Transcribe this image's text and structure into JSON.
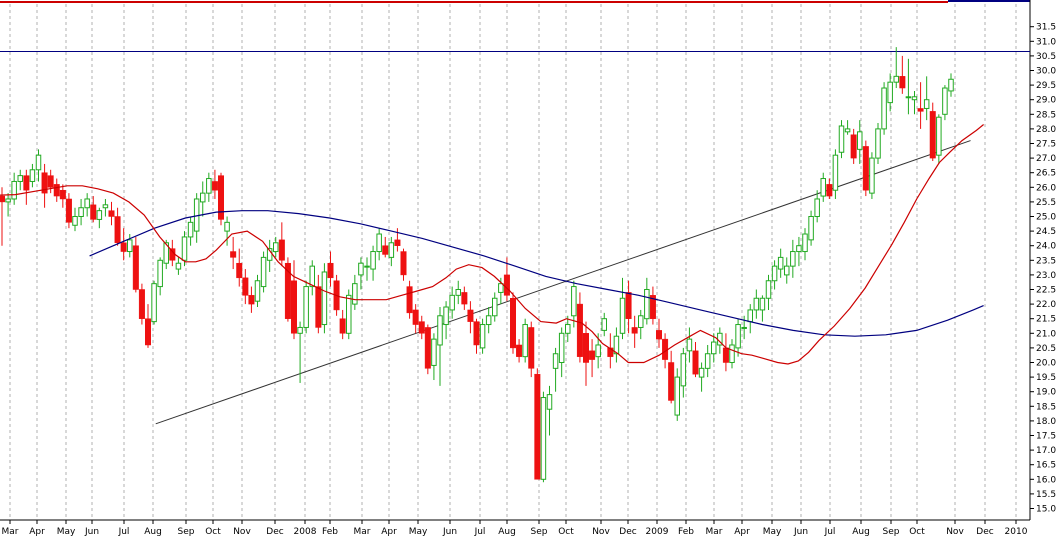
{
  "chart_data": {
    "type": "candlestick",
    "title": "",
    "xlabel": "",
    "ylabel": "",
    "ylim": [
      14.5,
      32.0
    ],
    "y_ticks": [
      15.0,
      15.5,
      16.0,
      16.5,
      17.0,
      17.5,
      18.0,
      18.5,
      19.0,
      19.5,
      20.0,
      20.5,
      21.0,
      21.5,
      22.0,
      22.5,
      23.0,
      23.5,
      24.0,
      24.5,
      25.0,
      25.5,
      26.0,
      26.5,
      27.0,
      27.5,
      28.0,
      28.5,
      29.0,
      29.5,
      30.0,
      30.5,
      31.0,
      31.5
    ],
    "y_tick_labels": [
      "15.0",
      "15.5",
      "16.0",
      "16.5",
      "17.0",
      "17.5",
      "18.0",
      "18.5",
      "19.0",
      "19.5",
      "20.0",
      "20.5",
      "21.0",
      "21.5",
      "22.0",
      "22.5",
      "23.0",
      "23.5",
      "24.0",
      "24.5",
      "25.0",
      "25.5",
      "26.0",
      "26.5",
      "27.0",
      "27.5",
      "28.0",
      "28.5",
      "29.0",
      "29.5",
      "30.0",
      "30.5",
      "31.0",
      "31.5"
    ],
    "x_labels": [
      "Mar",
      "Apr",
      "May",
      "Jun",
      "Jul",
      "Aug",
      "Sep",
      "Oct",
      "Nov",
      "Dec",
      "2008",
      "Feb",
      "Mar",
      "Apr",
      "May",
      "Jun",
      "Jul",
      "Aug",
      "Sep",
      "Oct",
      "Nov",
      "Dec",
      "2009",
      "Feb",
      "Mar",
      "Apr",
      "May",
      "Jun",
      "Jul",
      "Aug",
      "Sep",
      "Oct",
      "Nov",
      "Dec",
      "2010"
    ],
    "grid": "vertical dotted",
    "colors": {
      "up": "#22aa22",
      "down": "#ee1111",
      "ma_short": "#cc0000",
      "ma_long": "#000080",
      "resistance": "#000080",
      "trendline": "#333333",
      "top_border": "#cc0000"
    },
    "resistance_level": 30.65,
    "trendline": {
      "from": [
        0.1512,
        17.9
      ],
      "to": [
        0.9423,
        27.6
      ]
    },
    "candles": [
      [
        25.7,
        26.0,
        24.0,
        25.5
      ],
      [
        25.5,
        25.8,
        25.0,
        25.6
      ],
      [
        25.6,
        26.5,
        25.4,
        26.2
      ],
      [
        26.2,
        26.6,
        25.9,
        26.4
      ],
      [
        26.4,
        26.6,
        25.4,
        25.9
      ],
      [
        26.2,
        26.8,
        26.0,
        26.6
      ],
      [
        26.6,
        27.3,
        26.2,
        27.1
      ],
      [
        26.5,
        26.8,
        25.3,
        25.8
      ],
      [
        26.4,
        26.6,
        25.8,
        26.0
      ],
      [
        26.1,
        26.3,
        25.5,
        25.7
      ],
      [
        25.9,
        26.1,
        25.3,
        25.6
      ],
      [
        25.6,
        25.8,
        24.6,
        24.8
      ],
      [
        24.7,
        25.3,
        24.5,
        25.0
      ],
      [
        25.0,
        25.6,
        24.7,
        25.3
      ],
      [
        25.3,
        25.8,
        25.0,
        25.6
      ],
      [
        25.4,
        25.7,
        24.8,
        24.9
      ],
      [
        24.9,
        25.3,
        24.6,
        25.2
      ],
      [
        25.3,
        25.6,
        25.0,
        25.4
      ],
      [
        25.2,
        25.5,
        24.7,
        25.0
      ],
      [
        25.0,
        25.3,
        24.0,
        24.1
      ],
      [
        24.1,
        24.6,
        23.5,
        23.8
      ],
      [
        23.8,
        24.4,
        23.6,
        24.2
      ],
      [
        24.0,
        24.3,
        22.4,
        22.5
      ],
      [
        22.5,
        22.7,
        21.3,
        21.5
      ],
      [
        21.5,
        22.0,
        20.5,
        20.6
      ],
      [
        21.4,
        22.8,
        21.3,
        22.7
      ],
      [
        22.6,
        23.6,
        22.3,
        23.5
      ],
      [
        23.4,
        24.2,
        23.2,
        24.1
      ],
      [
        23.9,
        24.2,
        23.3,
        23.5
      ],
      [
        23.2,
        23.6,
        23.0,
        23.4
      ],
      [
        23.5,
        24.5,
        23.3,
        24.3
      ],
      [
        24.3,
        25.0,
        24.0,
        24.8
      ],
      [
        24.5,
        25.8,
        24.1,
        25.6
      ],
      [
        25.5,
        26.2,
        25.0,
        25.8
      ],
      [
        25.8,
        26.5,
        25.5,
        26.3
      ],
      [
        26.2,
        26.6,
        25.6,
        25.9
      ],
      [
        26.4,
        26.5,
        24.7,
        24.9
      ],
      [
        24.5,
        25.0,
        24.0,
        24.8
      ],
      [
        23.8,
        24.3,
        23.2,
        23.6
      ],
      [
        23.4,
        23.9,
        22.6,
        22.9
      ],
      [
        22.9,
        23.2,
        22.0,
        22.3
      ],
      [
        22.3,
        22.6,
        21.7,
        22.0
      ],
      [
        22.1,
        23.0,
        21.9,
        22.8
      ],
      [
        22.6,
        23.8,
        22.4,
        23.6
      ],
      [
        23.5,
        24.2,
        23.1,
        23.9
      ],
      [
        23.8,
        24.3,
        23.6,
        24.1
      ],
      [
        24.2,
        24.8,
        23.3,
        23.5
      ],
      [
        23.4,
        23.6,
        21.4,
        21.5
      ],
      [
        22.8,
        23.5,
        20.8,
        21.0
      ],
      [
        21.0,
        21.4,
        19.3,
        21.2
      ],
      [
        21.2,
        22.8,
        21.0,
        22.6
      ],
      [
        22.6,
        23.5,
        22.3,
        23.3
      ],
      [
        22.6,
        23.0,
        21.0,
        21.2
      ],
      [
        21.3,
        23.4,
        21.0,
        23.1
      ],
      [
        23.4,
        23.8,
        22.6,
        22.9
      ],
      [
        22.8,
        23.0,
        21.6,
        21.8
      ],
      [
        21.5,
        21.8,
        20.8,
        21.0
      ],
      [
        21.0,
        22.5,
        20.8,
        22.3
      ],
      [
        22.0,
        23.0,
        21.8,
        22.7
      ],
      [
        23.0,
        23.6,
        22.5,
        23.4
      ],
      [
        23.3,
        23.6,
        22.8,
        23.3
      ],
      [
        23.2,
        24.0,
        22.8,
        23.8
      ],
      [
        23.8,
        24.6,
        23.5,
        24.4
      ],
      [
        24.0,
        24.3,
        23.6,
        23.7
      ],
      [
        23.6,
        24.3,
        23.3,
        24.1
      ],
      [
        24.2,
        24.6,
        23.8,
        24.0
      ],
      [
        23.8,
        23.9,
        22.8,
        23.0
      ],
      [
        22.6,
        22.8,
        21.5,
        21.7
      ],
      [
        21.8,
        22.0,
        21.0,
        21.3
      ],
      [
        21.4,
        21.6,
        20.8,
        21.0
      ],
      [
        21.2,
        21.3,
        19.6,
        19.8
      ],
      [
        19.9,
        21.0,
        19.4,
        20.8
      ],
      [
        20.6,
        21.9,
        19.2,
        21.6
      ],
      [
        21.3,
        22.1,
        20.8,
        21.9
      ],
      [
        21.8,
        22.6,
        21.5,
        22.3
      ],
      [
        22.3,
        22.8,
        22.0,
        22.5
      ],
      [
        22.4,
        22.6,
        21.8,
        22.0
      ],
      [
        21.8,
        22.1,
        21.0,
        21.4
      ],
      [
        21.4,
        21.5,
        20.3,
        20.6
      ],
      [
        20.5,
        21.5,
        20.3,
        21.3
      ],
      [
        21.3,
        21.9,
        21.0,
        21.6
      ],
      [
        21.6,
        22.4,
        21.4,
        22.2
      ],
      [
        22.4,
        22.9,
        22.0,
        22.7
      ],
      [
        23.0,
        23.6,
        22.1,
        22.3
      ],
      [
        22.2,
        22.4,
        20.3,
        20.5
      ],
      [
        20.6,
        20.8,
        20.0,
        20.2
      ],
      [
        20.2,
        21.5,
        20.0,
        21.3
      ],
      [
        21.2,
        21.4,
        19.5,
        19.8
      ],
      [
        19.6,
        19.8,
        16.0,
        16.0
      ],
      [
        16.0,
        19.0,
        15.9,
        18.8
      ],
      [
        18.4,
        19.2,
        17.5,
        18.9
      ],
      [
        19.8,
        20.5,
        19.0,
        20.3
      ],
      [
        20.0,
        21.2,
        19.5,
        21.0
      ],
      [
        21.0,
        21.6,
        20.7,
        21.3
      ],
      [
        21.6,
        22.8,
        21.2,
        22.6
      ],
      [
        22.0,
        22.4,
        20.0,
        20.2
      ],
      [
        21.0,
        21.4,
        19.2,
        20.0
      ],
      [
        20.4,
        20.8,
        19.5,
        20.1
      ],
      [
        20.2,
        21.0,
        19.8,
        20.6
      ],
      [
        21.1,
        21.7,
        20.9,
        21.5
      ],
      [
        20.5,
        21.0,
        19.8,
        20.2
      ],
      [
        20.3,
        21.2,
        20.0,
        20.9
      ],
      [
        21.0,
        22.9,
        20.8,
        22.2
      ],
      [
        22.4,
        22.8,
        21.0,
        21.5
      ],
      [
        21.2,
        21.6,
        20.5,
        21.0
      ],
      [
        21.2,
        21.8,
        20.8,
        21.6
      ],
      [
        21.5,
        22.9,
        21.3,
        22.5
      ],
      [
        22.3,
        22.6,
        21.3,
        21.5
      ],
      [
        21.1,
        21.5,
        20.5,
        20.8
      ],
      [
        20.8,
        21.0,
        19.8,
        20.1
      ],
      [
        20.0,
        20.4,
        18.6,
        18.7
      ],
      [
        18.2,
        19.8,
        18.0,
        19.5
      ],
      [
        19.2,
        20.5,
        18.8,
        20.3
      ],
      [
        20.4,
        21.2,
        20.0,
        20.8
      ],
      [
        20.4,
        20.7,
        19.5,
        19.6
      ],
      [
        19.5,
        20.0,
        19.0,
        19.8
      ],
      [
        19.8,
        20.6,
        19.5,
        20.3
      ],
      [
        20.3,
        21.0,
        20.0,
        20.7
      ],
      [
        20.6,
        21.2,
        20.3,
        21.0
      ],
      [
        20.5,
        21.0,
        19.7,
        20.0
      ],
      [
        20.0,
        20.8,
        19.8,
        20.6
      ],
      [
        20.5,
        21.5,
        20.2,
        21.3
      ],
      [
        21.2,
        21.6,
        20.8,
        21.2
      ],
      [
        21.4,
        22.0,
        21.0,
        21.8
      ],
      [
        21.8,
        22.5,
        21.5,
        22.2
      ],
      [
        21.8,
        22.3,
        21.4,
        22.2
      ],
      [
        22.2,
        23.0,
        21.8,
        22.8
      ],
      [
        22.8,
        23.5,
        22.5,
        23.3
      ],
      [
        23.2,
        23.9,
        22.9,
        23.6
      ],
      [
        23.0,
        23.6,
        22.7,
        23.3
      ],
      [
        23.3,
        24.2,
        22.9,
        23.8
      ],
      [
        23.8,
        24.3,
        23.3,
        24.0
      ],
      [
        23.8,
        24.6,
        23.5,
        24.4
      ],
      [
        24.2,
        25.2,
        24.0,
        25.0
      ],
      [
        25.0,
        25.9,
        24.8,
        25.6
      ],
      [
        25.7,
        26.5,
        25.5,
        26.3
      ],
      [
        26.1,
        26.3,
        25.6,
        25.7
      ],
      [
        25.9,
        27.3,
        25.6,
        27.1
      ],
      [
        27.2,
        28.3,
        27.0,
        28.1
      ],
      [
        27.9,
        28.3,
        27.8,
        28.0
      ],
      [
        27.8,
        28.0,
        26.8,
        27.0
      ],
      [
        27.3,
        28.3,
        26.8,
        27.9
      ],
      [
        27.4,
        27.6,
        25.7,
        25.9
      ],
      [
        25.8,
        27.2,
        25.6,
        27.0
      ],
      [
        27.0,
        28.2,
        26.8,
        28.0
      ],
      [
        28.0,
        29.6,
        27.8,
        29.4
      ],
      [
        28.9,
        29.9,
        28.6,
        29.6
      ],
      [
        29.6,
        30.8,
        29.4,
        29.8
      ],
      [
        29.8,
        30.5,
        29.2,
        29.4
      ],
      [
        29.1,
        30.4,
        28.5,
        29.1
      ],
      [
        29.0,
        29.3,
        28.5,
        29.1
      ],
      [
        28.7,
        29.6,
        28.0,
        28.6
      ],
      [
        28.7,
        29.8,
        28.3,
        29.0
      ],
      [
        28.6,
        28.9,
        26.9,
        27.0
      ],
      [
        27.1,
        28.5,
        26.8,
        28.4
      ],
      [
        28.5,
        29.5,
        28.3,
        29.4
      ],
      [
        29.3,
        29.9,
        29.1,
        29.7
      ]
    ],
    "ma_short": [
      [
        -0.025,
        25.7
      ],
      [
        0.015,
        25.75
      ],
      [
        0.04,
        25.9
      ],
      [
        0.065,
        26.05
      ],
      [
        0.08,
        26.05
      ],
      [
        0.095,
        25.95
      ],
      [
        0.11,
        25.8
      ],
      [
        0.125,
        25.5
      ],
      [
        0.14,
        25.05
      ],
      [
        0.155,
        24.3
      ],
      [
        0.17,
        23.7
      ],
      [
        0.18,
        23.45
      ],
      [
        0.19,
        23.45
      ],
      [
        0.2,
        23.55
      ],
      [
        0.21,
        23.85
      ],
      [
        0.225,
        24.4
      ],
      [
        0.24,
        24.5
      ],
      [
        0.255,
        24.15
      ],
      [
        0.27,
        23.45
      ],
      [
        0.285,
        22.95
      ],
      [
        0.3,
        22.7
      ],
      [
        0.315,
        22.45
      ],
      [
        0.33,
        22.25
      ],
      [
        0.345,
        22.15
      ],
      [
        0.36,
        22.15
      ],
      [
        0.375,
        22.15
      ],
      [
        0.39,
        22.3
      ],
      [
        0.405,
        22.45
      ],
      [
        0.42,
        22.6
      ],
      [
        0.433,
        22.9
      ],
      [
        0.443,
        23.2
      ],
      [
        0.455,
        23.35
      ],
      [
        0.468,
        23.25
      ],
      [
        0.48,
        22.95
      ],
      [
        0.495,
        22.45
      ],
      [
        0.51,
        21.85
      ],
      [
        0.525,
        21.4
      ],
      [
        0.54,
        21.35
      ],
      [
        0.55,
        21.5
      ],
      [
        0.565,
        21.35
      ],
      [
        0.575,
        21.05
      ],
      [
        0.585,
        20.65
      ],
      [
        0.6,
        20.3
      ],
      [
        0.61,
        20.0
      ],
      [
        0.625,
        20.0
      ],
      [
        0.64,
        20.25
      ],
      [
        0.655,
        20.6
      ],
      [
        0.67,
        20.9
      ],
      [
        0.68,
        21.1
      ],
      [
        0.695,
        20.85
      ],
      [
        0.705,
        20.5
      ],
      [
        0.72,
        20.3
      ],
      [
        0.73,
        20.25
      ],
      [
        0.74,
        20.15
      ],
      [
        0.755,
        20.0
      ],
      [
        0.765,
        19.95
      ],
      [
        0.775,
        20.05
      ],
      [
        0.785,
        20.35
      ],
      [
        0.795,
        20.75
      ],
      [
        0.81,
        21.25
      ],
      [
        0.825,
        21.85
      ],
      [
        0.84,
        22.55
      ],
      [
        0.853,
        23.3
      ],
      [
        0.866,
        24.05
      ],
      [
        0.878,
        24.8
      ],
      [
        0.89,
        25.6
      ],
      [
        0.902,
        26.3
      ],
      [
        0.912,
        26.85
      ],
      [
        0.922,
        27.2
      ],
      [
        0.934,
        27.6
      ],
      [
        0.948,
        27.95
      ],
      [
        0.955,
        28.15
      ]
    ],
    "ma_long": [
      [
        0.087,
        23.65
      ],
      [
        0.12,
        24.15
      ],
      [
        0.15,
        24.6
      ],
      [
        0.18,
        24.95
      ],
      [
        0.21,
        25.15
      ],
      [
        0.235,
        25.2
      ],
      [
        0.26,
        25.2
      ],
      [
        0.29,
        25.1
      ],
      [
        0.32,
        24.95
      ],
      [
        0.35,
        24.75
      ],
      [
        0.38,
        24.5
      ],
      [
        0.41,
        24.25
      ],
      [
        0.44,
        23.95
      ],
      [
        0.47,
        23.65
      ],
      [
        0.5,
        23.3
      ],
      [
        0.53,
        22.95
      ],
      [
        0.56,
        22.7
      ],
      [
        0.59,
        22.5
      ],
      [
        0.62,
        22.3
      ],
      [
        0.65,
        22.05
      ],
      [
        0.68,
        21.8
      ],
      [
        0.71,
        21.55
      ],
      [
        0.74,
        21.3
      ],
      [
        0.77,
        21.1
      ],
      [
        0.8,
        20.95
      ],
      [
        0.83,
        20.9
      ],
      [
        0.86,
        20.95
      ],
      [
        0.89,
        21.1
      ],
      [
        0.92,
        21.45
      ],
      [
        0.945,
        21.8
      ],
      [
        0.955,
        21.95
      ]
    ]
  }
}
